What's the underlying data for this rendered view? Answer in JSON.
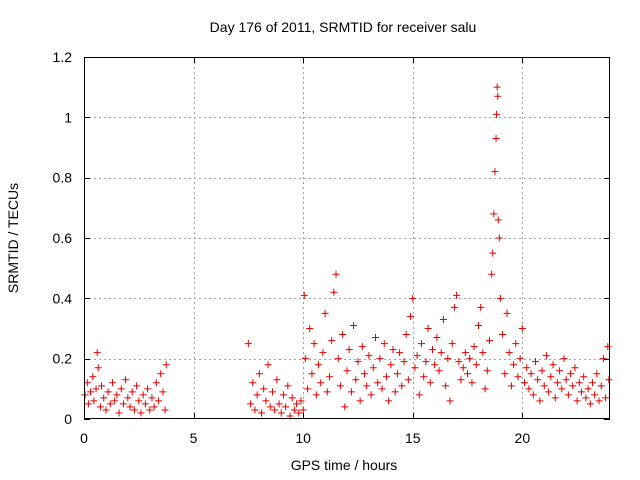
{
  "chart_data": {
    "type": "scatter",
    "title": "Day 176 of 2011, SRMTID for receiver salu",
    "xlabel": "GPS time / hours",
    "ylabel": "SRMTID / TECUs",
    "xlim": [
      0,
      24
    ],
    "ylim": [
      0,
      1.2
    ],
    "x_ticks": [
      0,
      5,
      10,
      15,
      20
    ],
    "y_ticks": [
      0,
      0.2,
      0.4,
      0.6,
      0.8,
      1,
      1.2
    ],
    "x_tick_labels": [
      "0",
      "5",
      "10",
      "15",
      "20"
    ],
    "y_tick_labels": [
      "0",
      "0.2",
      "0.4",
      "0.6",
      "0.8",
      "1",
      "1.2"
    ],
    "grid": true,
    "marker": "plus",
    "series": [
      {
        "name": "SRMTID",
        "color": "#e00000",
        "points": [
          [
            0.05,
            0.08
          ],
          [
            0.15,
            0.12
          ],
          [
            0.2,
            0.05
          ],
          [
            0.3,
            0.09
          ],
          [
            0.4,
            0.14
          ],
          [
            0.45,
            0.06
          ],
          [
            0.55,
            0.1
          ],
          [
            0.6,
            0.22
          ],
          [
            0.65,
            0.17
          ],
          [
            0.75,
            0.04
          ],
          [
            0.8,
            0.11
          ],
          [
            0.9,
            0.07
          ],
          [
            1.0,
            0.03
          ],
          [
            1.1,
            0.09
          ],
          [
            1.2,
            0.05
          ],
          [
            1.3,
            0.12
          ],
          [
            1.4,
            0.06
          ],
          [
            1.5,
            0.08
          ],
          [
            1.6,
            0.02
          ],
          [
            1.7,
            0.1
          ],
          [
            1.8,
            0.05
          ],
          [
            1.9,
            0.13
          ],
          [
            2.0,
            0.07
          ],
          [
            2.1,
            0.04
          ],
          [
            2.2,
            0.09
          ],
          [
            2.3,
            0.03
          ],
          [
            2.4,
            0.11
          ],
          [
            2.5,
            0.06
          ],
          [
            2.6,
            0.02
          ],
          [
            2.7,
            0.08
          ],
          [
            2.8,
            0.05
          ],
          [
            2.9,
            0.1
          ],
          [
            3.0,
            0.03
          ],
          [
            3.1,
            0.07
          ],
          [
            3.2,
            0.04
          ],
          [
            3.3,
            0.12
          ],
          [
            3.4,
            0.06
          ],
          [
            3.5,
            0.15
          ],
          [
            3.6,
            0.09
          ],
          [
            3.7,
            0.03
          ],
          [
            3.75,
            0.18
          ],
          [
            7.5,
            0.25
          ],
          [
            7.6,
            0.05
          ],
          [
            7.7,
            0.12
          ],
          [
            7.8,
            0.03
          ],
          [
            7.9,
            0.08
          ],
          [
            8.0,
            0.15
          ],
          [
            8.1,
            0.02
          ],
          [
            8.2,
            0.1
          ],
          [
            8.3,
            0.06
          ],
          [
            8.4,
            0.18
          ],
          [
            8.5,
            0.04
          ],
          [
            8.6,
            0.09
          ],
          [
            8.7,
            0.03
          ],
          [
            8.8,
            0.13
          ],
          [
            8.9,
            0.05
          ],
          [
            9.0,
            0.02
          ],
          [
            9.1,
            0.08
          ],
          [
            9.2,
            0.04
          ],
          [
            9.3,
            0.11
          ],
          [
            9.4,
            0.01
          ],
          [
            9.5,
            0.07
          ],
          [
            9.6,
            0.03
          ],
          [
            9.7,
            0.05
          ],
          [
            9.8,
            0.02
          ],
          [
            9.9,
            0.06
          ],
          [
            10.0,
            0.03
          ],
          [
            10.05,
            0.41
          ],
          [
            10.1,
            0.2
          ],
          [
            10.2,
            0.1
          ],
          [
            10.3,
            0.3
          ],
          [
            10.4,
            0.15
          ],
          [
            10.5,
            0.25
          ],
          [
            10.6,
            0.08
          ],
          [
            10.7,
            0.18
          ],
          [
            10.8,
            0.12
          ],
          [
            10.9,
            0.22
          ],
          [
            11.0,
            0.35
          ],
          [
            11.1,
            0.09
          ],
          [
            11.2,
            0.14
          ],
          [
            11.3,
            0.26
          ],
          [
            11.4,
            0.42
          ],
          [
            11.5,
            0.48
          ],
          [
            11.6,
            0.2
          ],
          [
            11.7,
            0.11
          ],
          [
            11.8,
            0.28
          ],
          [
            11.9,
            0.04
          ],
          [
            12.0,
            0.16
          ],
          [
            12.1,
            0.23
          ],
          [
            12.2,
            0.09
          ],
          [
            12.3,
            0.31
          ],
          [
            12.4,
            0.13
          ],
          [
            12.5,
            0.19
          ],
          [
            12.6,
            0.06
          ],
          [
            12.7,
            0.24
          ],
          [
            12.8,
            0.15
          ],
          [
            12.9,
            0.11
          ],
          [
            13.0,
            0.21
          ],
          [
            13.1,
            0.08
          ],
          [
            13.2,
            0.17
          ],
          [
            13.3,
            0.27
          ],
          [
            13.4,
            0.12
          ],
          [
            13.5,
            0.2
          ],
          [
            13.6,
            0.1
          ],
          [
            13.7,
            0.25
          ],
          [
            13.8,
            0.14
          ],
          [
            13.9,
            0.06
          ],
          [
            14.0,
            0.18
          ],
          [
            14.1,
            0.23
          ],
          [
            14.2,
            0.09
          ],
          [
            14.3,
            0.15
          ],
          [
            14.4,
            0.22
          ],
          [
            14.5,
            0.11
          ],
          [
            14.6,
            0.19
          ],
          [
            14.7,
            0.28
          ],
          [
            14.8,
            0.13
          ],
          [
            14.9,
            0.34
          ],
          [
            15.0,
            0.4
          ],
          [
            15.1,
            0.17
          ],
          [
            15.2,
            0.21
          ],
          [
            15.3,
            0.08
          ],
          [
            15.4,
            0.25
          ],
          [
            15.5,
            0.14
          ],
          [
            15.6,
            0.19
          ],
          [
            15.7,
            0.3
          ],
          [
            15.8,
            0.12
          ],
          [
            15.9,
            0.23
          ],
          [
            16.0,
            0.18
          ],
          [
            16.1,
            0.27
          ],
          [
            16.2,
            0.16
          ],
          [
            16.3,
            0.22
          ],
          [
            16.4,
            0.33
          ],
          [
            16.5,
            0.11
          ],
          [
            16.6,
            0.2
          ],
          [
            16.7,
            0.06
          ],
          [
            16.8,
            0.25
          ],
          [
            16.9,
            0.37
          ],
          [
            17.0,
            0.41
          ],
          [
            17.1,
            0.19
          ],
          [
            17.2,
            0.13
          ],
          [
            17.3,
            0.17
          ],
          [
            17.4,
            0.22
          ],
          [
            17.5,
            0.15
          ],
          [
            17.6,
            0.2
          ],
          [
            17.7,
            0.12
          ],
          [
            17.8,
            0.24
          ],
          [
            17.9,
            0.18
          ],
          [
            18.0,
            0.31
          ],
          [
            18.1,
            0.37
          ],
          [
            18.2,
            0.22
          ],
          [
            18.3,
            0.1
          ],
          [
            18.4,
            0.16
          ],
          [
            18.5,
            0.26
          ],
          [
            18.6,
            0.48
          ],
          [
            18.65,
            0.55
          ],
          [
            18.7,
            0.68
          ],
          [
            18.75,
            0.82
          ],
          [
            18.8,
            0.93
          ],
          [
            18.82,
            1.01
          ],
          [
            18.85,
            1.1
          ],
          [
            18.88,
            1.07
          ],
          [
            18.9,
            0.66
          ],
          [
            18.95,
            0.6
          ],
          [
            19.0,
            0.4
          ],
          [
            19.1,
            0.28
          ],
          [
            19.2,
            0.15
          ],
          [
            19.3,
            0.35
          ],
          [
            19.4,
            0.22
          ],
          [
            19.5,
            0.11
          ],
          [
            19.6,
            0.18
          ],
          [
            19.7,
            0.25
          ],
          [
            19.8,
            0.14
          ],
          [
            19.9,
            0.2
          ],
          [
            20.0,
            0.3
          ],
          [
            20.1,
            0.12
          ],
          [
            20.2,
            0.17
          ],
          [
            20.3,
            0.1
          ],
          [
            20.4,
            0.15
          ],
          [
            20.5,
            0.08
          ],
          [
            20.6,
            0.19
          ],
          [
            20.7,
            0.13
          ],
          [
            20.8,
            0.06
          ],
          [
            20.9,
            0.16
          ],
          [
            21.0,
            0.11
          ],
          [
            21.1,
            0.21
          ],
          [
            21.2,
            0.09
          ],
          [
            21.3,
            0.14
          ],
          [
            21.4,
            0.18
          ],
          [
            21.5,
            0.07
          ],
          [
            21.6,
            0.12
          ],
          [
            21.7,
            0.16
          ],
          [
            21.8,
            0.1
          ],
          [
            21.9,
            0.2
          ],
          [
            22.0,
            0.13
          ],
          [
            22.1,
            0.08
          ],
          [
            22.2,
            0.15
          ],
          [
            22.3,
            0.11
          ],
          [
            22.4,
            0.17
          ],
          [
            22.5,
            0.06
          ],
          [
            22.6,
            0.12
          ],
          [
            22.7,
            0.09
          ],
          [
            22.8,
            0.14
          ],
          [
            22.9,
            0.07
          ],
          [
            23.0,
            0.1
          ],
          [
            23.1,
            0.05
          ],
          [
            23.2,
            0.12
          ],
          [
            23.3,
            0.08
          ],
          [
            23.4,
            0.15
          ],
          [
            23.5,
            0.06
          ],
          [
            23.6,
            0.11
          ],
          [
            23.7,
            0.2
          ],
          [
            23.8,
            0.07
          ],
          [
            23.9,
            0.24
          ],
          [
            23.95,
            0.13
          ]
        ]
      }
    ]
  }
}
